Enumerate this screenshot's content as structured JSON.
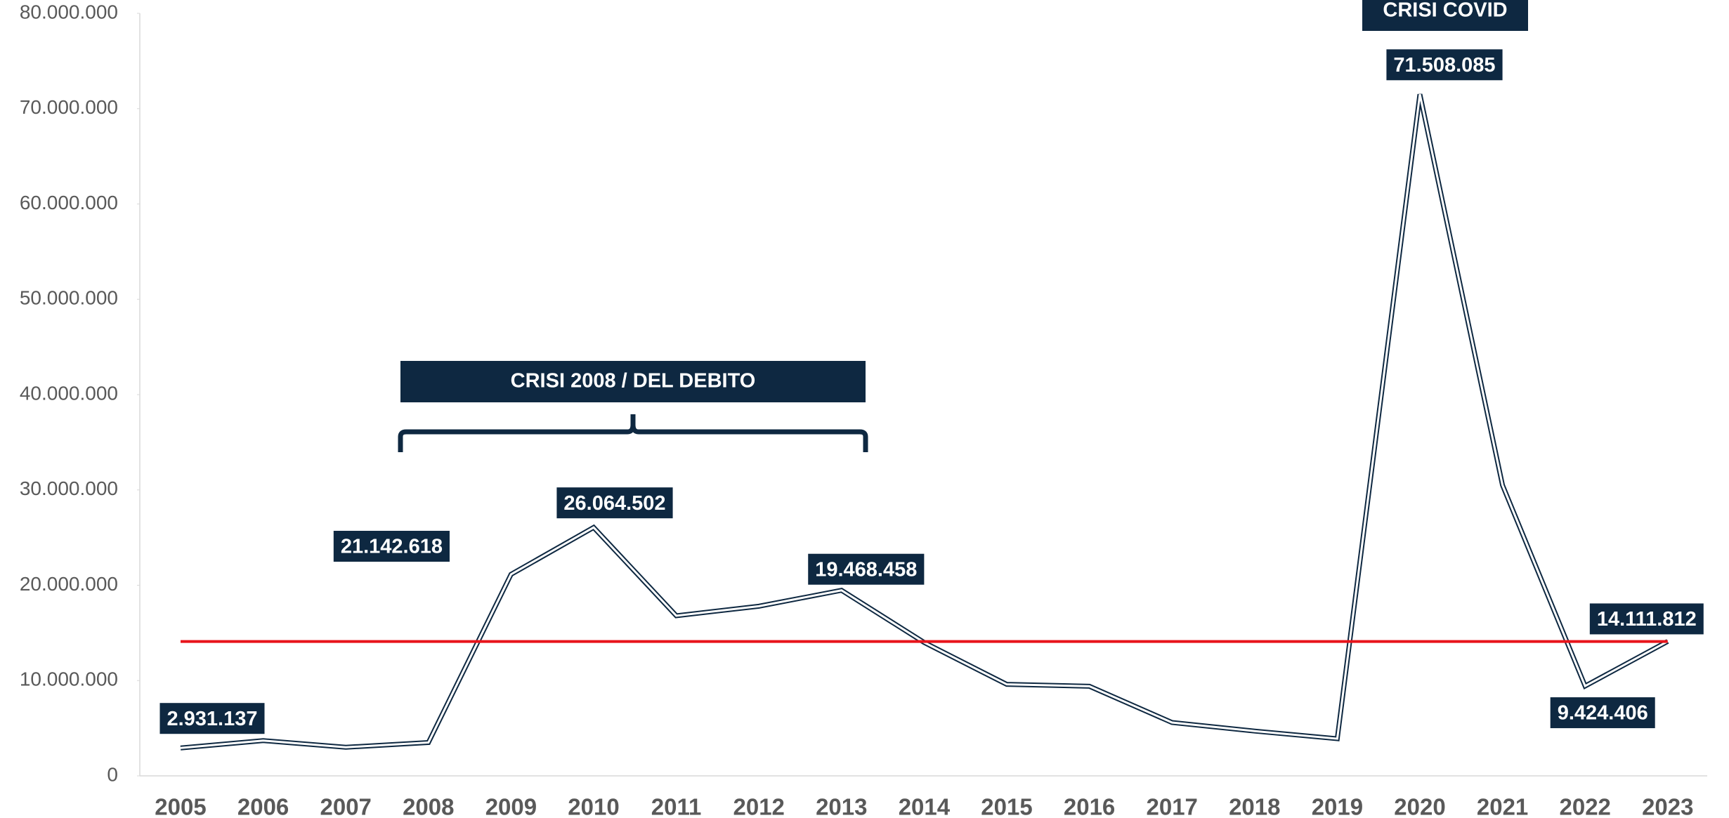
{
  "chart_data": {
    "type": "line",
    "categories": [
      "2005",
      "2006",
      "2007",
      "2008",
      "2009",
      "2010",
      "2011",
      "2012",
      "2013",
      "2014",
      "2015",
      "2016",
      "2017",
      "2018",
      "2019",
      "2020",
      "2021",
      "2022",
      "2023"
    ],
    "series": [
      {
        "color": "#0e2841",
        "values": [
          2931137,
          3700000,
          3000000,
          3500000,
          21142618,
          26064502,
          16800000,
          17800000,
          19468458,
          14000000,
          9600000,
          9400000,
          5600000,
          4700000,
          3900000,
          71508085,
          30500000,
          9424406,
          14111812
        ],
        "value_labels": [
          "2.931.137",
          null,
          null,
          null,
          "21.142.618",
          "26.064.502",
          null,
          null,
          "19.468.458",
          null,
          null,
          null,
          null,
          null,
          null,
          "71.508.085",
          null,
          "9.424.406",
          "14.111.812"
        ]
      }
    ],
    "reference_line": {
      "value": 14100000,
      "color": "#e8141b"
    },
    "ylim": [
      0,
      80000000
    ],
    "yticks": [
      0,
      {
        "value": 10000000,
        "label": "10.000.000"
      },
      {
        "value": 20000000,
        "label": "20.000.000"
      },
      {
        "value": 30000000,
        "label": "30.000.000"
      },
      {
        "value": 40000000,
        "label": "40.000.000"
      },
      {
        "value": 50000000,
        "label": "50.000.000"
      },
      {
        "value": 60000000,
        "label": "60.000.000"
      },
      {
        "value": 70000000,
        "label": "70.000.000"
      },
      {
        "value": 80000000,
        "label": "80.000.000"
      }
    ],
    "annotations": [
      {
        "text": "CRISI 2008 / DEL DEBITO"
      },
      {
        "text": "CRISI COVID"
      }
    ]
  }
}
